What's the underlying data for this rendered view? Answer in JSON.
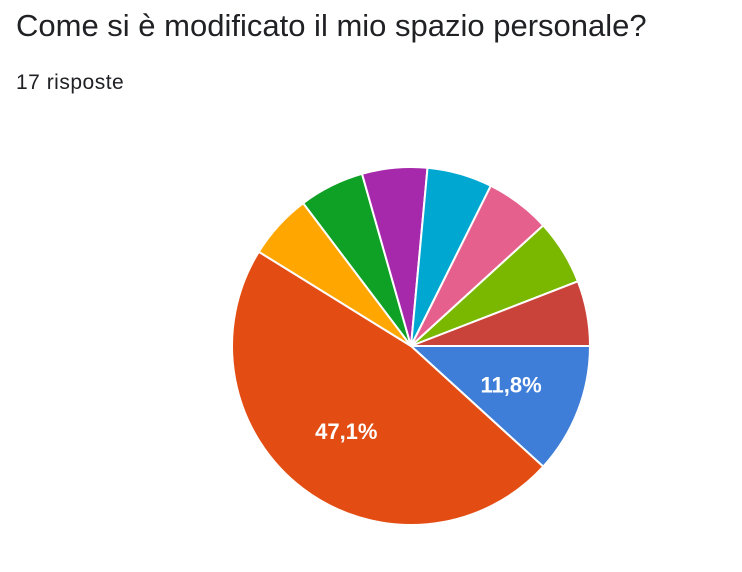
{
  "header": {
    "title": "Come si è modificato il mio spazio personale?",
    "subtitle": "17 risposte"
  },
  "chart_data": {
    "type": "pie",
    "total": 17,
    "slices": [
      {
        "label": "",
        "count": 2,
        "value": 11.8,
        "color": "#3f7ed8",
        "data_label": "11,8%"
      },
      {
        "label": "",
        "count": 8,
        "value": 47.1,
        "color": "#e34d13",
        "data_label": "47,1%"
      },
      {
        "label": "",
        "count": 1,
        "value": 5.9,
        "color": "#ffa600",
        "data_label": ""
      },
      {
        "label": "",
        "count": 1,
        "value": 5.9,
        "color": "#0fa126",
        "data_label": ""
      },
      {
        "label": "",
        "count": 1,
        "value": 5.9,
        "color": "#a629ab",
        "data_label": ""
      },
      {
        "label": "",
        "count": 1,
        "value": 5.9,
        "color": "#00a8d1",
        "data_label": ""
      },
      {
        "label": "",
        "count": 1,
        "value": 5.9,
        "color": "#e6608d",
        "data_label": ""
      },
      {
        "label": "",
        "count": 1,
        "value": 5.9,
        "color": "#7ab800",
        "data_label": ""
      },
      {
        "label": "",
        "count": 1,
        "value": 5.9,
        "color": "#c9433a",
        "data_label": ""
      }
    ],
    "start_angle_deg": 0,
    "direction": "clockwise"
  }
}
